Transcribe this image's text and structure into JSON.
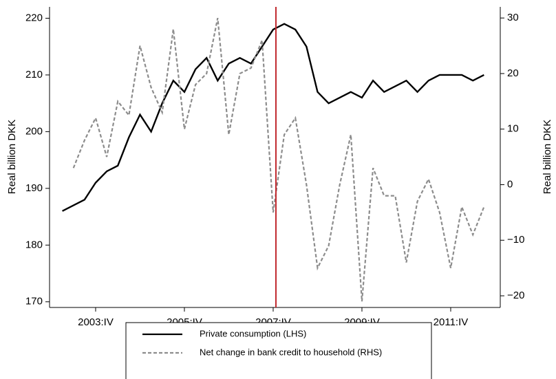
{
  "chart_data": {
    "type": "line",
    "categories": [
      null,
      null,
      null,
      "2003:IV",
      null,
      null,
      null,
      null,
      null,
      null,
      null,
      "2005:IV",
      null,
      null,
      null,
      null,
      null,
      null,
      null,
      "2007:IV",
      null,
      null,
      null,
      null,
      null,
      null,
      null,
      "2009:IV",
      null,
      null,
      null,
      null,
      null,
      null,
      null,
      "2011:IV",
      null,
      null,
      null
    ],
    "series": [
      {
        "name": "Private consumption (LHS)",
        "color": "#000000",
        "values": [
          186,
          187,
          188,
          191,
          193,
          194,
          199,
          203,
          200,
          205,
          209,
          207,
          211,
          213,
          209,
          212,
          213,
          212,
          215,
          218,
          219,
          218,
          215,
          207,
          205,
          206,
          207,
          206,
          209,
          207,
          208,
          209,
          207,
          209,
          210,
          210,
          210,
          209,
          210
        ]
      },
      {
        "name": "Net change in bank credit to household (RHS)",
        "color": "#8c8c8c",
        "dashed": true,
        "axis": "y2",
        "values": [
          null,
          3,
          8,
          12,
          5,
          15,
          12.5,
          25,
          17.5,
          13,
          28,
          10,
          18,
          20,
          30,
          9,
          20,
          21,
          26,
          -5,
          9,
          12,
          0,
          -15,
          -11,
          0,
          9,
          -21,
          3,
          -2,
          -2,
          -14,
          -3,
          1,
          -5,
          -15,
          -4,
          -9,
          -4
        ]
      }
    ],
    "ylabel": "Real billion DKK",
    "y2label": "Real billion DKK",
    "ylim": [
      169,
      222
    ],
    "yticks": [
      170,
      180,
      190,
      200,
      210,
      220
    ],
    "y2lim": [
      -22.1,
      32
    ],
    "y2ticks": [
      {
        "value": -20,
        "label": "−20"
      },
      {
        "value": -10,
        "label": "−10"
      },
      0,
      10,
      20,
      30
    ],
    "vline": {
      "category": 19,
      "color": "#c0282d"
    },
    "legend": "bottom"
  }
}
